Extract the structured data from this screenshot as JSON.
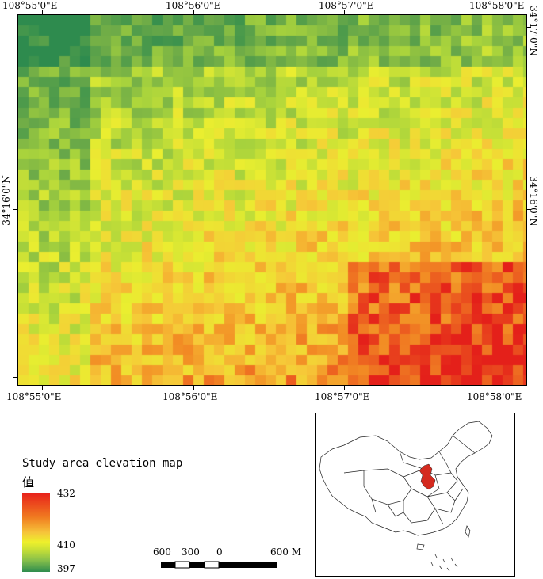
{
  "map": {
    "lon_ticks": [
      "108°55'0\"E",
      "108°56'0\"E",
      "108°57'0\"E",
      "108°58'0\"E"
    ],
    "lat_ticks": [
      "34°17'0\"N",
      "34°16'0\"N"
    ],
    "colors": {
      "low": "#2f8d4e",
      "mid": "#eef02c",
      "high": "#e8231b"
    }
  },
  "legend": {
    "title": "Study area elevation map",
    "field": "值",
    "max": "432",
    "mid": "410",
    "min": "397"
  },
  "scalebar": {
    "labels": [
      "600",
      "300",
      "0",
      "600 M"
    ]
  },
  "inset": {
    "highlight_color": "#d42a1f"
  }
}
